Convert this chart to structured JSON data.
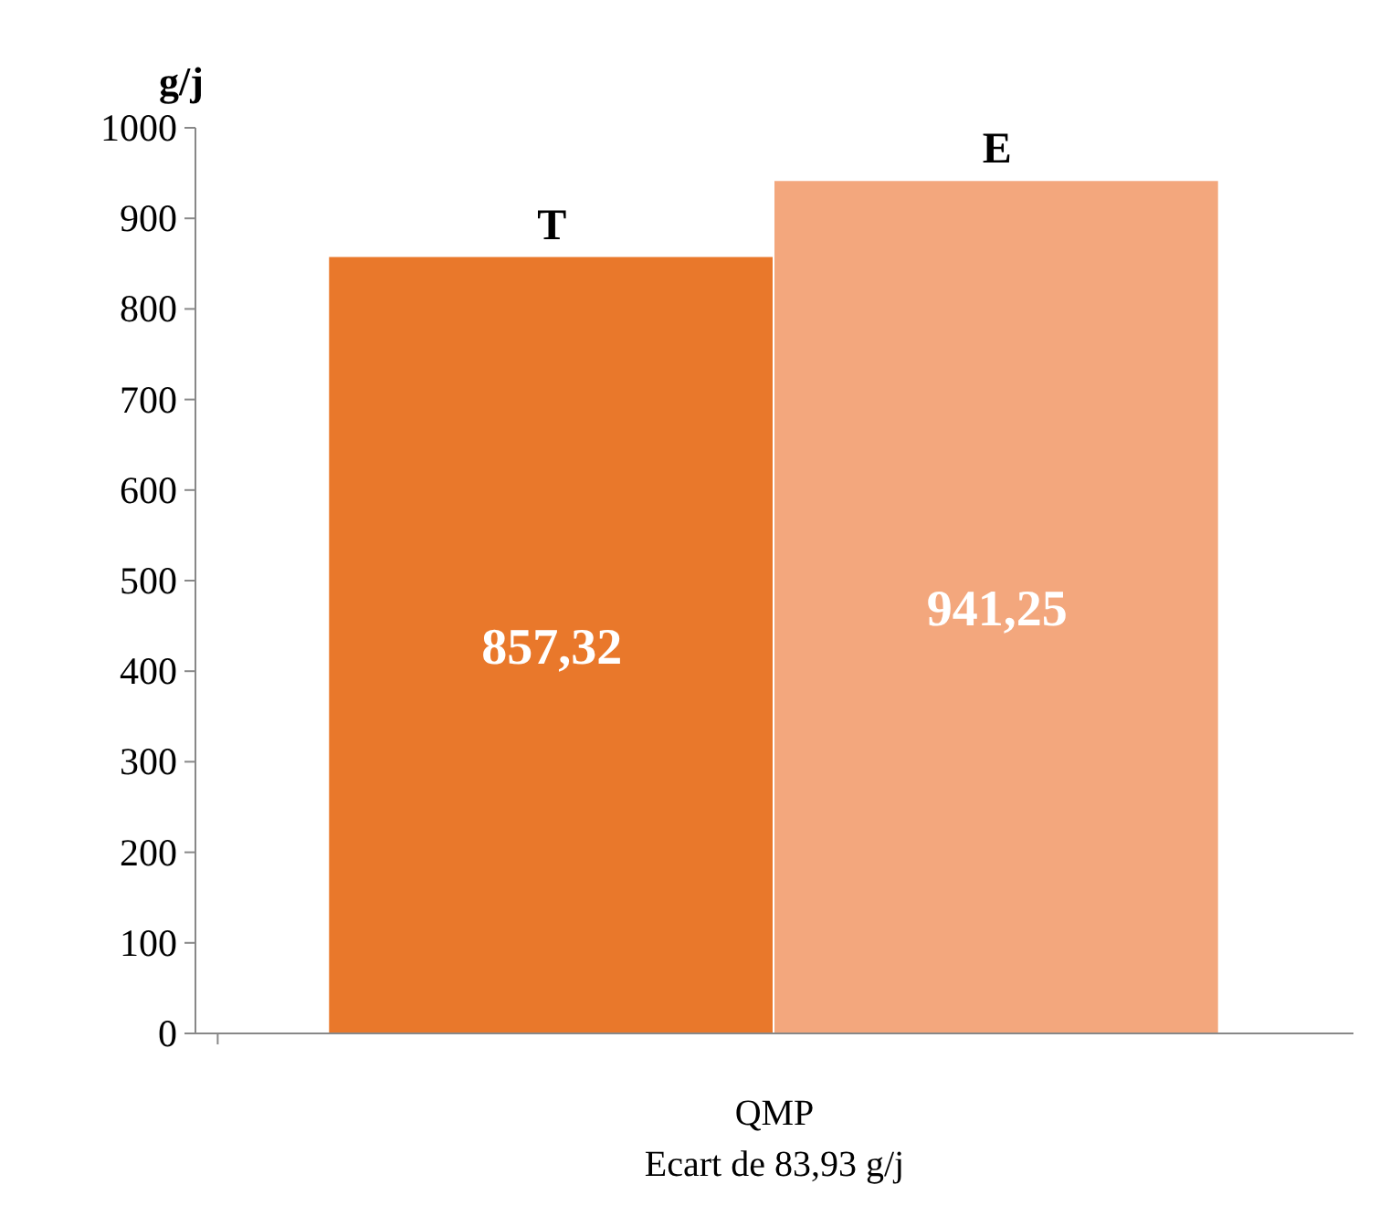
{
  "chart_data": {
    "type": "bar",
    "ylabel": "g/j",
    "categories": [
      "QMP"
    ],
    "series": [
      {
        "name": "T",
        "color": "#e9782b",
        "values": [
          857.32
        ],
        "value_labels": [
          "857,32"
        ]
      },
      {
        "name": "E",
        "color": "#f3a77d",
        "values": [
          941.25
        ],
        "value_labels": [
          "941,25"
        ]
      }
    ],
    "annotations": [
      "Ecart de 83,93 g/j"
    ],
    "ylim": [
      0,
      1000
    ],
    "yticks": [
      0,
      100,
      200,
      300,
      400,
      500,
      600,
      700,
      800,
      900,
      1000
    ],
    "grid": false
  }
}
